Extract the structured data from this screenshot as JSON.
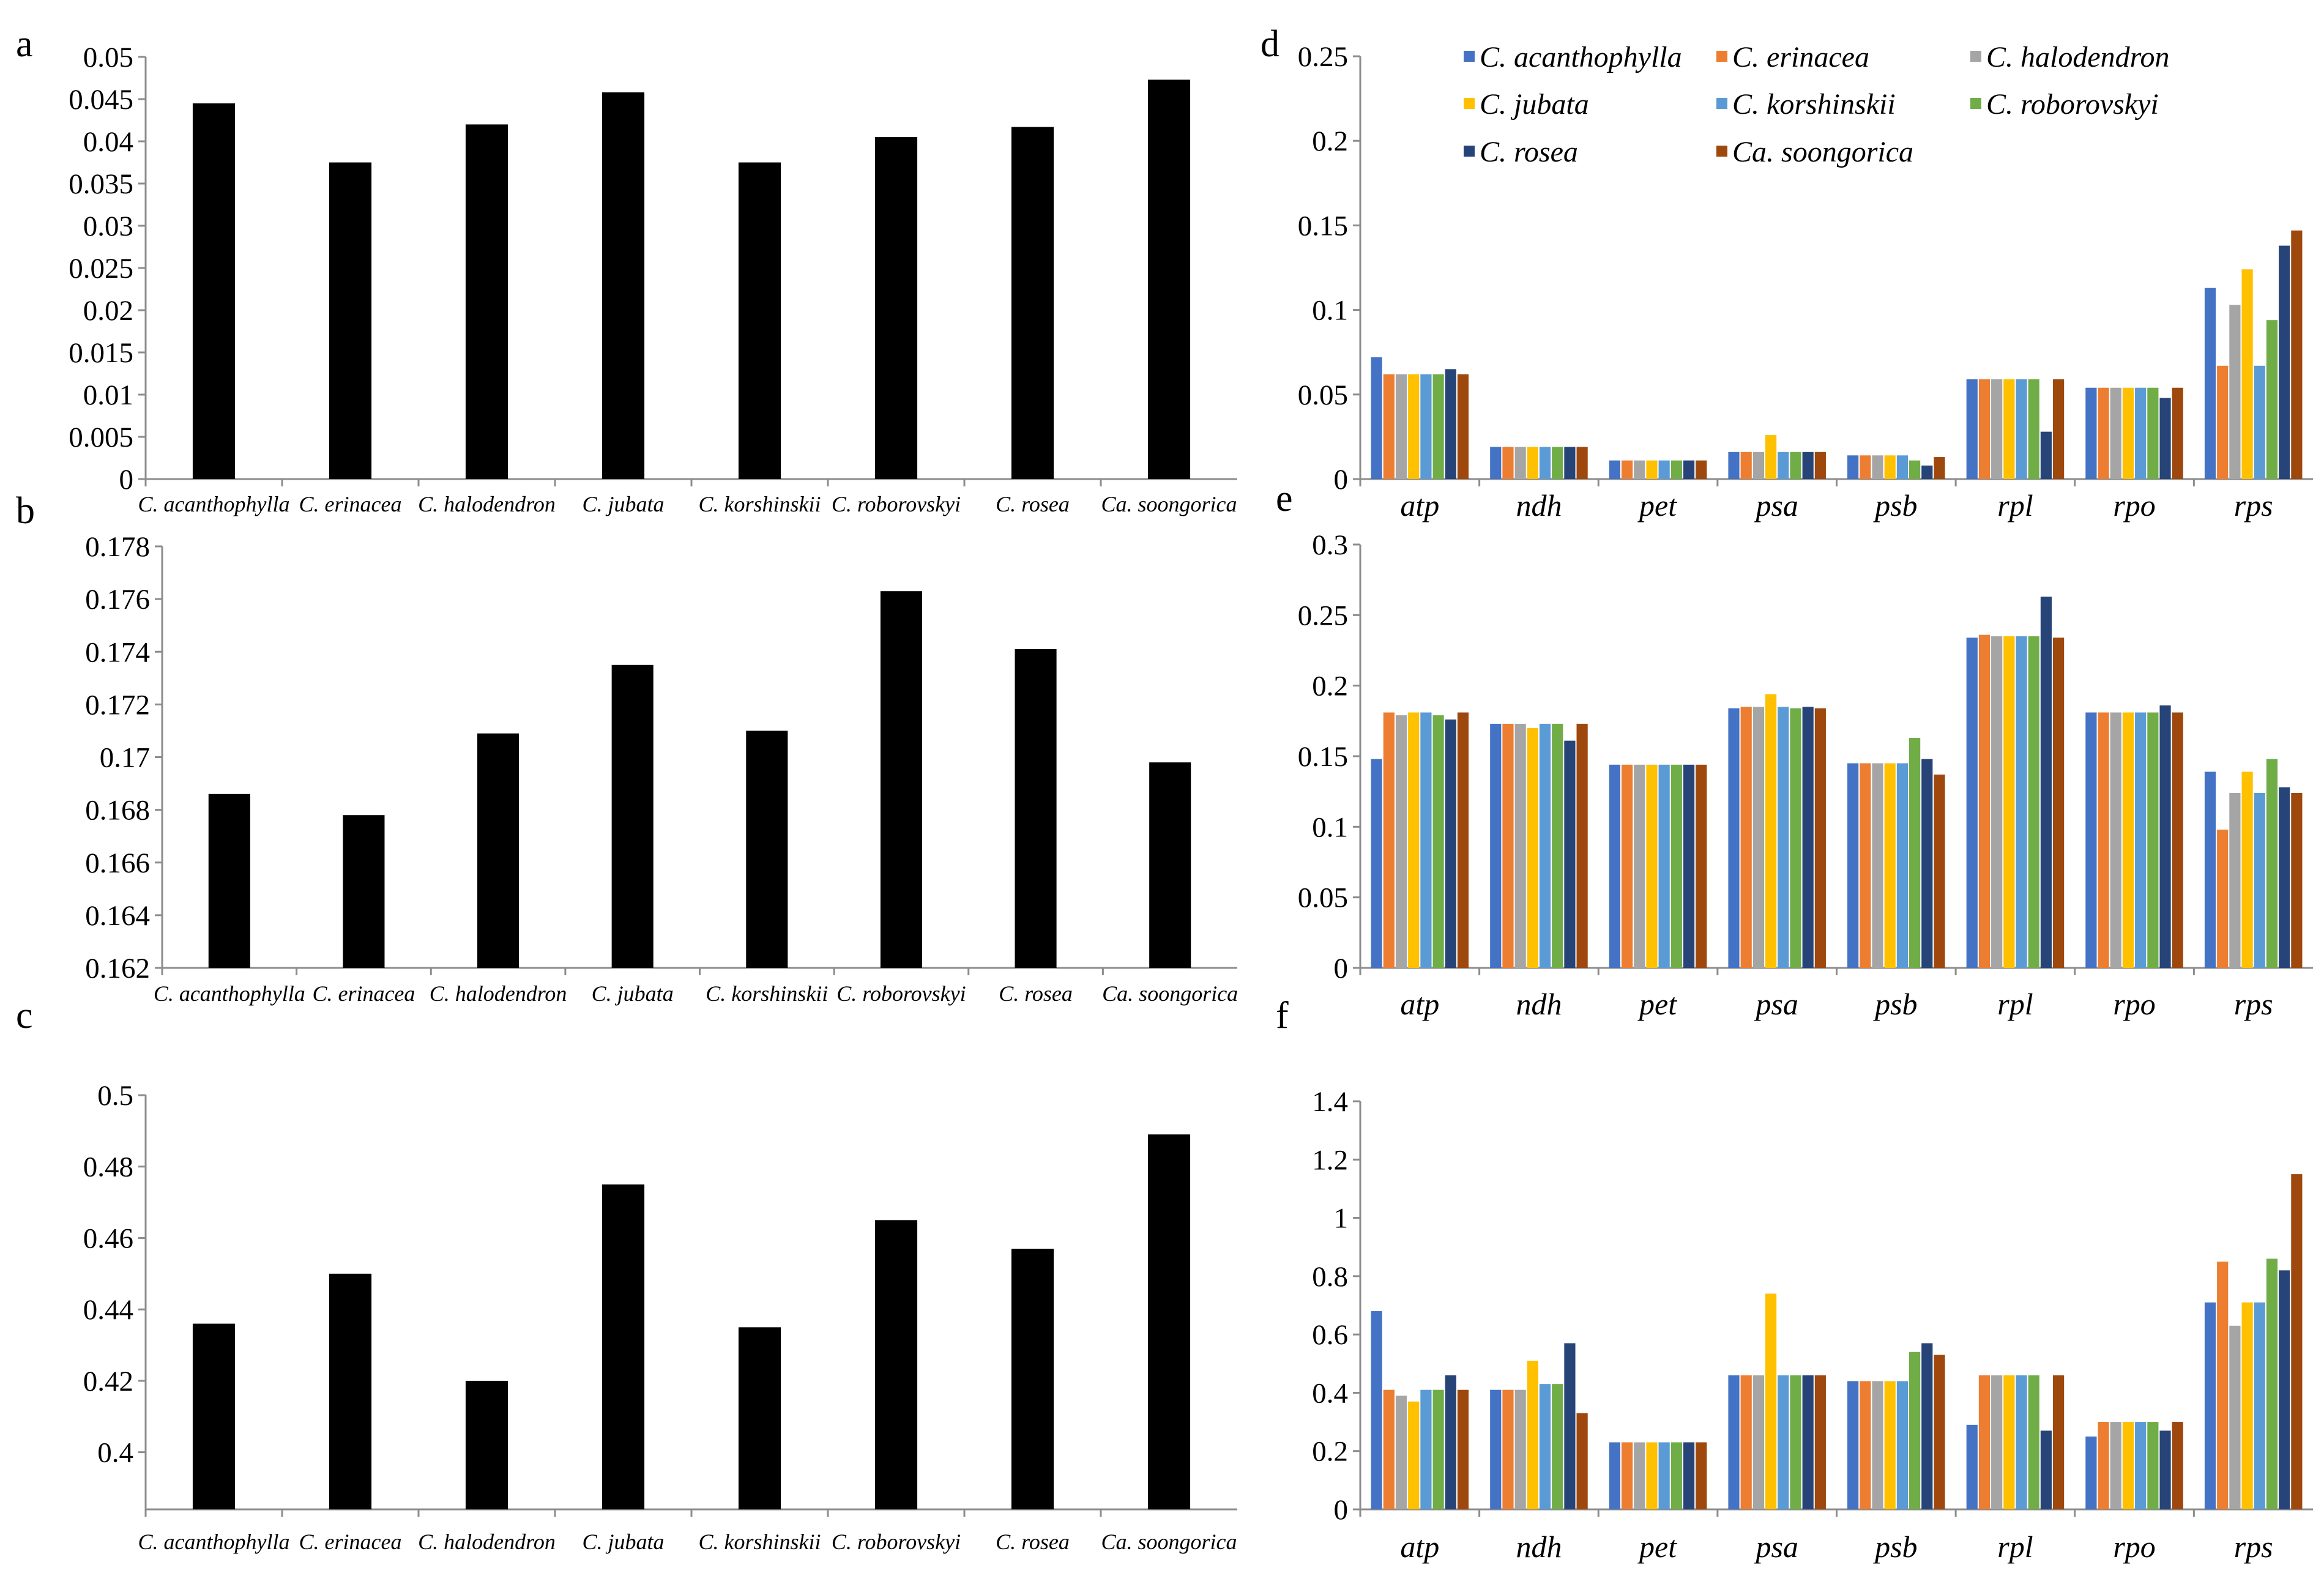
{
  "panel_letters": {
    "a": "a",
    "b": "b",
    "c": "c",
    "d": "d",
    "e": "e",
    "f": "f"
  },
  "colors": {
    "bar_black": "#000000",
    "series": [
      "#4472c4",
      "#ed7d31",
      "#a5a5a5",
      "#ffc000",
      "#5b9bd5",
      "#70ad47",
      "#264478",
      "#9e480e"
    ]
  },
  "legend": {
    "entries": [
      "C. acanthophylla",
      "C. erinacea",
      "C. halodendron",
      "C. jubata",
      "C. korshinskii",
      "C. roborovskyi",
      "C. rosea",
      "Ca. soongorica"
    ]
  },
  "chart_data": [
    {
      "id": "a",
      "type": "bar",
      "categories": [
        "C. acanthophylla",
        "C. erinacea",
        "C. halodendron",
        "C. jubata",
        "C. korshinskii",
        "C. roborovskyi",
        "C. rosea",
        "Ca. soongorica"
      ],
      "values": [
        0.0445,
        0.0375,
        0.042,
        0.0458,
        0.0375,
        0.0405,
        0.0417,
        0.0473
      ],
      "ylim": [
        0,
        0.05
      ],
      "yticks": [
        "0",
        "0.005",
        "0.01",
        "0.015",
        "0.02",
        "0.025",
        "0.03",
        "0.035",
        "0.04",
        "0.045",
        "0.05"
      ],
      "title": "",
      "xlabel": "",
      "ylabel": "",
      "grid": false
    },
    {
      "id": "b",
      "type": "bar",
      "categories": [
        "C. acanthophylla",
        "C. erinacea",
        "C. halodendron",
        "C. jubata",
        "C. korshinskii",
        "C. roborovskyi",
        "C. rosea",
        "Ca. soongorica"
      ],
      "values": [
        0.1686,
        0.1678,
        0.1709,
        0.1735,
        0.171,
        0.1763,
        0.1741,
        0.1698
      ],
      "ylim": [
        0.162,
        0.178
      ],
      "yticks": [
        "0.162",
        "0.164",
        "0.166",
        "0.168",
        "0.17",
        "0.172",
        "0.174",
        "0.176",
        "0.178"
      ],
      "title": "",
      "xlabel": "",
      "ylabel": "",
      "grid": false
    },
    {
      "id": "c",
      "type": "bar",
      "categories": [
        "C. acanthophylla",
        "C. erinacea",
        "C. halodendron",
        "C. jubata",
        "C. korshinskii",
        "C. roborovskyi",
        "C. rosea",
        "Ca. soongorica"
      ],
      "values": [
        0.436,
        0.45,
        0.42,
        0.475,
        0.435,
        0.465,
        0.457,
        0.489
      ],
      "ylim": [
        0.384,
        0.5
      ],
      "yticks": [
        "0.4",
        "0.42",
        "0.44",
        "0.46",
        "0.48",
        "0.5"
      ],
      "title": "",
      "xlabel": "",
      "ylabel": "",
      "grid": false
    },
    {
      "id": "d",
      "type": "bar",
      "categories": [
        "atp",
        "ndh",
        "pet",
        "psa",
        "psb",
        "rpl",
        "rpo",
        "rps"
      ],
      "ylim": [
        0,
        0.25
      ],
      "yticks": [
        "0",
        "0.05",
        "0.1",
        "0.15",
        "0.2",
        "0.25"
      ],
      "series": [
        {
          "name": "C. acanthophylla",
          "values": [
            0.072,
            0.019,
            0.011,
            0.016,
            0.014,
            0.059,
            0.054,
            0.113
          ]
        },
        {
          "name": "C. erinacea",
          "values": [
            0.062,
            0.019,
            0.011,
            0.016,
            0.014,
            0.059,
            0.054,
            0.067
          ]
        },
        {
          "name": "C. halodendron",
          "values": [
            0.062,
            0.019,
            0.011,
            0.016,
            0.014,
            0.059,
            0.054,
            0.103
          ]
        },
        {
          "name": "C. jubata",
          "values": [
            0.062,
            0.019,
            0.011,
            0.026,
            0.014,
            0.059,
            0.054,
            0.124
          ]
        },
        {
          "name": "C. korshinskii",
          "values": [
            0.062,
            0.019,
            0.011,
            0.016,
            0.014,
            0.059,
            0.054,
            0.067
          ]
        },
        {
          "name": "C. roborovskyi",
          "values": [
            0.062,
            0.019,
            0.011,
            0.016,
            0.011,
            0.059,
            0.054,
            0.094
          ]
        },
        {
          "name": "C. rosea",
          "values": [
            0.065,
            0.019,
            0.011,
            0.016,
            0.008,
            0.028,
            0.048,
            0.138
          ]
        },
        {
          "name": "Ca. soongorica",
          "values": [
            0.062,
            0.019,
            0.011,
            0.016,
            0.013,
            0.059,
            0.054,
            0.147
          ]
        }
      ],
      "title": "",
      "xlabel": "",
      "ylabel": "",
      "grid": false,
      "legend_position": "top"
    },
    {
      "id": "e",
      "type": "bar",
      "categories": [
        "atp",
        "ndh",
        "pet",
        "psa",
        "psb",
        "rpl",
        "rpo",
        "rps"
      ],
      "ylim": [
        0,
        0.3
      ],
      "yticks": [
        "0",
        "0.05",
        "0.1",
        "0.15",
        "0.2",
        "0.25",
        "0.3"
      ],
      "series": [
        {
          "name": "C. acanthophylla",
          "values": [
            0.148,
            0.173,
            0.144,
            0.184,
            0.145,
            0.234,
            0.181,
            0.139
          ]
        },
        {
          "name": "C. erinacea",
          "values": [
            0.181,
            0.173,
            0.144,
            0.185,
            0.145,
            0.236,
            0.181,
            0.098
          ]
        },
        {
          "name": "C. halodendron",
          "values": [
            0.179,
            0.173,
            0.144,
            0.185,
            0.145,
            0.235,
            0.181,
            0.124
          ]
        },
        {
          "name": "C. jubata",
          "values": [
            0.181,
            0.17,
            0.144,
            0.194,
            0.145,
            0.235,
            0.181,
            0.139
          ]
        },
        {
          "name": "C. korshinskii",
          "values": [
            0.181,
            0.173,
            0.144,
            0.185,
            0.145,
            0.235,
            0.181,
            0.124
          ]
        },
        {
          "name": "C. roborovskyi",
          "values": [
            0.179,
            0.173,
            0.144,
            0.184,
            0.163,
            0.235,
            0.181,
            0.148
          ]
        },
        {
          "name": "C. rosea",
          "values": [
            0.176,
            0.161,
            0.144,
            0.185,
            0.148,
            0.263,
            0.186,
            0.128
          ]
        },
        {
          "name": "Ca. soongorica",
          "values": [
            0.181,
            0.173,
            0.144,
            0.184,
            0.137,
            0.234,
            0.181,
            0.124
          ]
        }
      ],
      "title": "",
      "xlabel": "",
      "ylabel": "",
      "grid": false
    },
    {
      "id": "f",
      "type": "bar",
      "categories": [
        "atp",
        "ndh",
        "pet",
        "psa",
        "psb",
        "rpl",
        "rpo",
        "rps"
      ],
      "ylim": [
        0,
        1.4
      ],
      "yticks": [
        "0",
        "0.2",
        "0.4",
        "0.6",
        "0.8",
        "1",
        "1.2",
        "1.4"
      ],
      "series": [
        {
          "name": "C. acanthophylla",
          "values": [
            0.68,
            0.41,
            0.23,
            0.46,
            0.44,
            0.29,
            0.25,
            0.71
          ]
        },
        {
          "name": "C. erinacea",
          "values": [
            0.41,
            0.41,
            0.23,
            0.46,
            0.44,
            0.46,
            0.3,
            0.85
          ]
        },
        {
          "name": "C. halodendron",
          "values": [
            0.39,
            0.41,
            0.23,
            0.46,
            0.44,
            0.46,
            0.3,
            0.63
          ]
        },
        {
          "name": "C. jubata",
          "values": [
            0.37,
            0.51,
            0.23,
            0.74,
            0.44,
            0.46,
            0.3,
            0.71
          ]
        },
        {
          "name": "C. korshinskii",
          "values": [
            0.41,
            0.43,
            0.23,
            0.46,
            0.44,
            0.46,
            0.3,
            0.71
          ]
        },
        {
          "name": "C. roborovskyi",
          "values": [
            0.41,
            0.43,
            0.23,
            0.46,
            0.54,
            0.46,
            0.3,
            0.86
          ]
        },
        {
          "name": "C. rosea",
          "values": [
            0.46,
            0.57,
            0.23,
            0.46,
            0.57,
            0.27,
            0.27,
            0.82
          ]
        },
        {
          "name": "Ca. soongorica",
          "values": [
            0.41,
            0.33,
            0.23,
            0.46,
            0.53,
            0.46,
            0.3,
            1.15
          ]
        }
      ],
      "title": "",
      "xlabel": "",
      "ylabel": "",
      "grid": false
    }
  ]
}
